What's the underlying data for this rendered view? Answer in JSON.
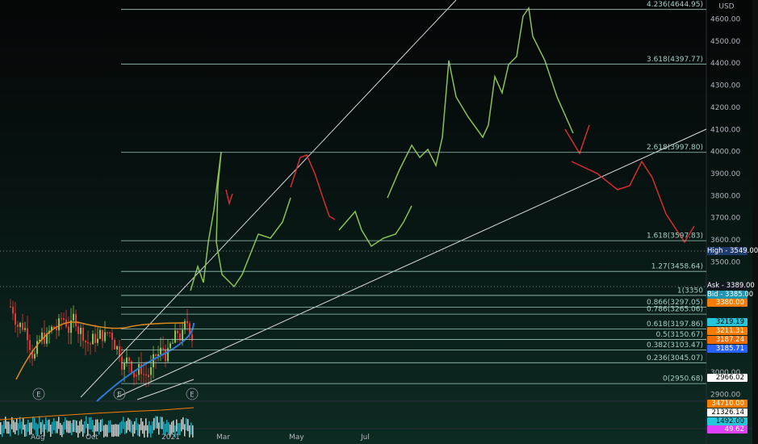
{
  "currency": "USD",
  "price_axis": [
    {
      "value": 4600,
      "label": "4600.00"
    },
    {
      "value": 4500,
      "label": "4500.00"
    },
    {
      "value": 4400,
      "label": "4400.00"
    },
    {
      "value": 4300,
      "label": "4300.00"
    },
    {
      "value": 4200,
      "label": "4200.00"
    },
    {
      "value": 4100,
      "label": "4100.00"
    },
    {
      "value": 4000,
      "label": "4000.00"
    },
    {
      "value": 3900,
      "label": "3900.00"
    },
    {
      "value": 3800,
      "label": "3800.00"
    },
    {
      "value": 3700,
      "label": "3700.00"
    },
    {
      "value": 3600,
      "label": "3600.00"
    },
    {
      "value": 3500,
      "label": "3500.00"
    },
    {
      "value": 3000,
      "label": "3000.00"
    },
    {
      "value": 2900,
      "label": "2900.00"
    }
  ],
  "fib_levels": [
    {
      "label": "4.236(4644.95)",
      "price": 4644.95
    },
    {
      "label": "3.618(4397.77)",
      "price": 4397.77
    },
    {
      "label": "2.618(3997.80)",
      "price": 3997.8
    },
    {
      "label": "1.618(3597.83)",
      "price": 3597.83
    },
    {
      "label": "1.27(3458.64)",
      "price": 3458.64
    },
    {
      "label": "1(3350",
      "price": 3350
    },
    {
      "label": "0.866(3297.05)",
      "price": 3297.05
    },
    {
      "label": "0.786(3265.06)",
      "price": 3265.06
    },
    {
      "label": "0.618(3197.86)",
      "price": 3197.86
    },
    {
      "label": "0.5(3150.67)",
      "price": 3150.67
    },
    {
      "label": "0.382(3103.47)",
      "price": 3103.47
    },
    {
      "label": "0.236(3045.07)",
      "price": 3045.07
    },
    {
      "label": "0(2950.68)",
      "price": 2950.68
    }
  ],
  "price_tags": {
    "high": "High - 3549.00",
    "ask": "Ask - 3389.00",
    "bid": "Bid - 3385.00",
    "t1": "3380.00",
    "t2": "3219.19",
    "t3": "3211.31",
    "t4": "3187.24",
    "t5": "3185.71",
    "t6": "2966.02",
    "v1": "34710.00",
    "v2": "21326.14",
    "v3": "1492.00",
    "v4": "49.62"
  },
  "time_axis": [
    "Aug",
    "Oct",
    "2021",
    "Mar",
    "May",
    "Jul"
  ],
  "earnings_marker": "E"
}
